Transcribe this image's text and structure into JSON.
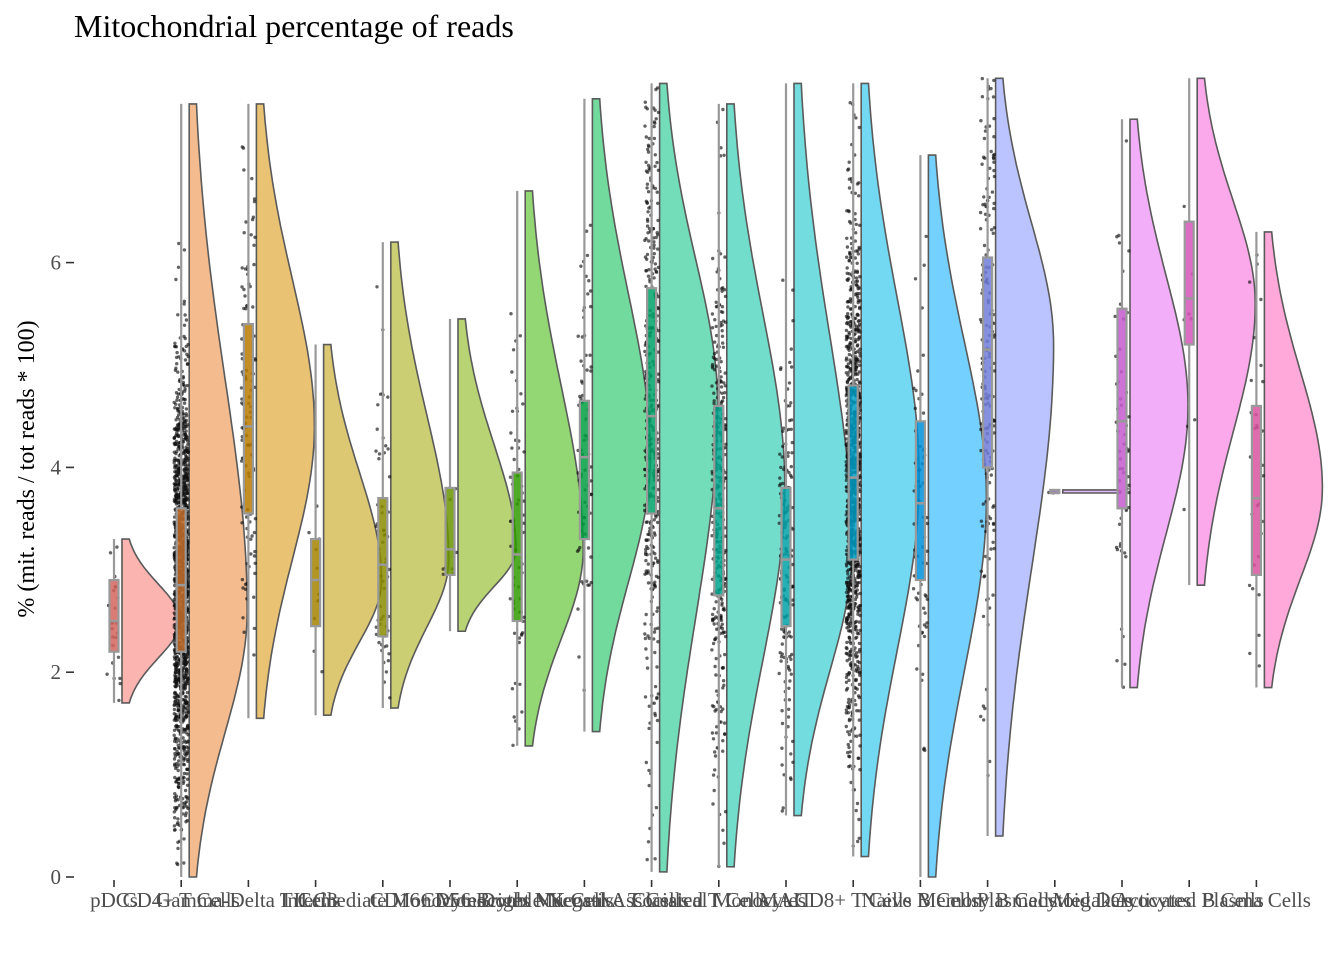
{
  "chart_data": {
    "type": "raincloud",
    "title": "Mitochondrial percentage of reads",
    "xlabel": "",
    "ylabel": "% (mit. reads / tot reads * 100)",
    "ylim": [
      0,
      7.8
    ],
    "yticks": [
      0,
      2,
      4,
      6
    ],
    "grid": false,
    "legend": "none",
    "groups": [
      {
        "name": "pDCs",
        "color": "#F8766D",
        "min": 1.7,
        "q1": 2.2,
        "median": 2.5,
        "q3": 2.9,
        "max": 3.3,
        "peak": 2.5,
        "n_points": 25
      },
      {
        "name": "CD4+ T Cells",
        "color": "#EA8331",
        "min": 0.0,
        "q1": 2.2,
        "median": 2.85,
        "q3": 3.6,
        "max": 7.55,
        "peak": 2.6,
        "n_points": 1500
      },
      {
        "name": "Gamma-Delta T Cells",
        "color": "#D89000",
        "min": 1.55,
        "q1": 3.55,
        "median": 4.4,
        "q3": 5.4,
        "max": 7.55,
        "peak": 4.4,
        "n_points": 110
      },
      {
        "name": "ILC3",
        "color": "#C09B00",
        "min": 1.58,
        "q1": 2.45,
        "median": 2.9,
        "q3": 3.3,
        "max": 5.2,
        "peak": 2.9,
        "n_points": 12
      },
      {
        "name": "Intermediate Monocytes",
        "color": "#A3A500",
        "min": 1.65,
        "q1": 2.35,
        "median": 3.05,
        "q3": 3.7,
        "max": 6.2,
        "peak": 3.1,
        "n_points": 60
      },
      {
        "name": "CD16+ Monocytes",
        "color": "#7CAE00",
        "min": 2.4,
        "q1": 2.95,
        "median": 3.2,
        "q3": 3.8,
        "max": 5.45,
        "peak": 3.2,
        "n_points": 8
      },
      {
        "name": "CD56 Bright NK Cells",
        "color": "#39B600",
        "min": 1.28,
        "q1": 2.5,
        "median": 3.15,
        "q3": 3.95,
        "max": 6.7,
        "peak": 3.2,
        "n_points": 65
      },
      {
        "name": "Double Negative T Cells",
        "color": "#00BB4E",
        "min": 1.42,
        "q1": 3.3,
        "median": 4.1,
        "q3": 4.65,
        "max": 7.6,
        "peak": 4.1,
        "n_points": 75
      },
      {
        "name": "Mucosal Associated T Cells",
        "color": "#00BF7D",
        "min": 0.05,
        "q1": 3.55,
        "median": 4.5,
        "q3": 5.75,
        "max": 7.75,
        "peak": 4.6,
        "n_points": 380
      },
      {
        "name": "Classical Monocytes",
        "color": "#00C1A3",
        "min": 0.1,
        "q1": 2.75,
        "median": 3.6,
        "q3": 4.6,
        "max": 7.55,
        "peak": 3.8,
        "n_points": 350
      },
      {
        "name": "MAIT",
        "color": "#00BFC4",
        "min": 0.6,
        "q1": 2.45,
        "median": 3.1,
        "q3": 3.8,
        "max": 7.75,
        "peak": 3.2,
        "n_points": 160
      },
      {
        "name": "CD8+ T Cells",
        "color": "#00B8E7",
        "min": 0.2,
        "q1": 3.1,
        "median": 3.9,
        "q3": 4.8,
        "max": 7.75,
        "peak": 3.9,
        "n_points": 1100
      },
      {
        "name": "Naive B Cells",
        "color": "#00A9FF",
        "min": 0.0,
        "q1": 2.9,
        "median": 3.65,
        "q3": 4.45,
        "max": 7.05,
        "peak": 3.7,
        "n_points": 70
      },
      {
        "name": "Memory B Cells",
        "color": "#8494FF",
        "min": 0.4,
        "q1": 4.0,
        "median": 5.15,
        "q3": 6.05,
        "max": 7.8,
        "peak": 5.2,
        "n_points": 180
      },
      {
        "name": "Plasmacytoid DCs",
        "color": "#C77CFF",
        "min": 3.75,
        "q1": 3.75,
        "median": 3.75,
        "q3": 3.78,
        "max": 3.78,
        "peak": 3.76,
        "n_points": 2
      },
      {
        "name": "Megakaryocytes",
        "color": "#E76BF3",
        "min": 1.85,
        "q1": 3.6,
        "median": 4.45,
        "q3": 5.55,
        "max": 7.4,
        "peak": 4.6,
        "n_points": 55
      },
      {
        "name": "Activated B Cells",
        "color": "#FA62DB",
        "min": 2.85,
        "q1": 5.2,
        "median": 5.65,
        "q3": 6.4,
        "max": 7.8,
        "peak": 5.6,
        "n_points": 8
      },
      {
        "name": "Plasma Cells",
        "color": "#FF62BC",
        "min": 1.85,
        "q1": 2.95,
        "median": 3.7,
        "q3": 4.6,
        "max": 6.3,
        "peak": 3.8,
        "n_points": 30
      }
    ]
  }
}
